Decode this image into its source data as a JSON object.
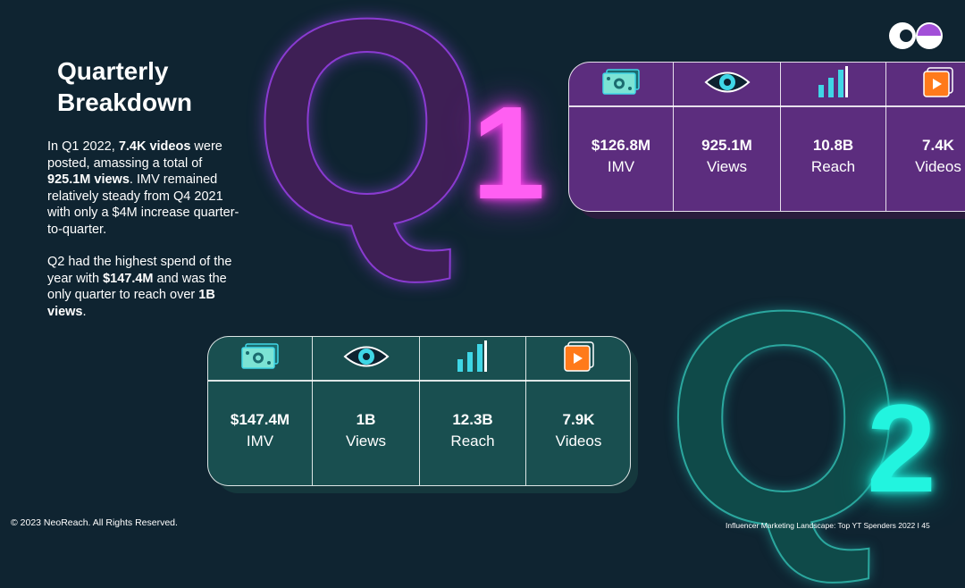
{
  "title": "Quarterly Breakdown",
  "paragraph1": {
    "t1": "In Q1 2022, ",
    "b1": "7.4K videos",
    "t2": " were posted, amassing a total of ",
    "b2": "925.1M views",
    "t3": ". IMV remained relatively steady from Q4 2021 with only a $4M increase quarter-to-quarter."
  },
  "paragraph2": {
    "t1": "Q2 had the highest spend of the year with ",
    "b1": "$147.4M",
    "t2": " and was the only quarter to reach over ",
    "b2": "1B",
    "t3": " views",
    "t4": "."
  },
  "q1_letters": {
    "q": "Q",
    "num": "1"
  },
  "q2_letters": {
    "q": "Q",
    "num": "2"
  },
  "q1_stats": [
    {
      "icon": "money-icon",
      "value": "$126.8M",
      "label": "IMV"
    },
    {
      "icon": "eye-icon",
      "value": "925.1M",
      "label": "Views"
    },
    {
      "icon": "bar-chart-icon",
      "value": "10.8B",
      "label": "Reach"
    },
    {
      "icon": "video-play-icon",
      "value": "7.4K",
      "label": "Videos"
    }
  ],
  "q2_stats": [
    {
      "icon": "money-icon",
      "value": "$147.4M",
      "label": "IMV"
    },
    {
      "icon": "eye-icon",
      "value": "1B",
      "label": "Views"
    },
    {
      "icon": "bar-chart-icon",
      "value": "12.3B",
      "label": "Reach"
    },
    {
      "icon": "video-play-icon",
      "value": "7.9K",
      "label": "Videos"
    }
  ],
  "colors": {
    "background": "#0f2431",
    "q1_panel": "#5c2d7e",
    "q2_panel": "#194f50",
    "q1_accent": "#ff5ff2",
    "q2_accent": "#22f4df",
    "icon_cyan": "#3fd6e6",
    "icon_orange": "#ff7a1a"
  },
  "footer": {
    "copyright": "© 2023 NeoReach. All Rights Reserved.",
    "report": "Influencer Marketing Landscape:  Top YT Spenders 2022 I  45"
  }
}
